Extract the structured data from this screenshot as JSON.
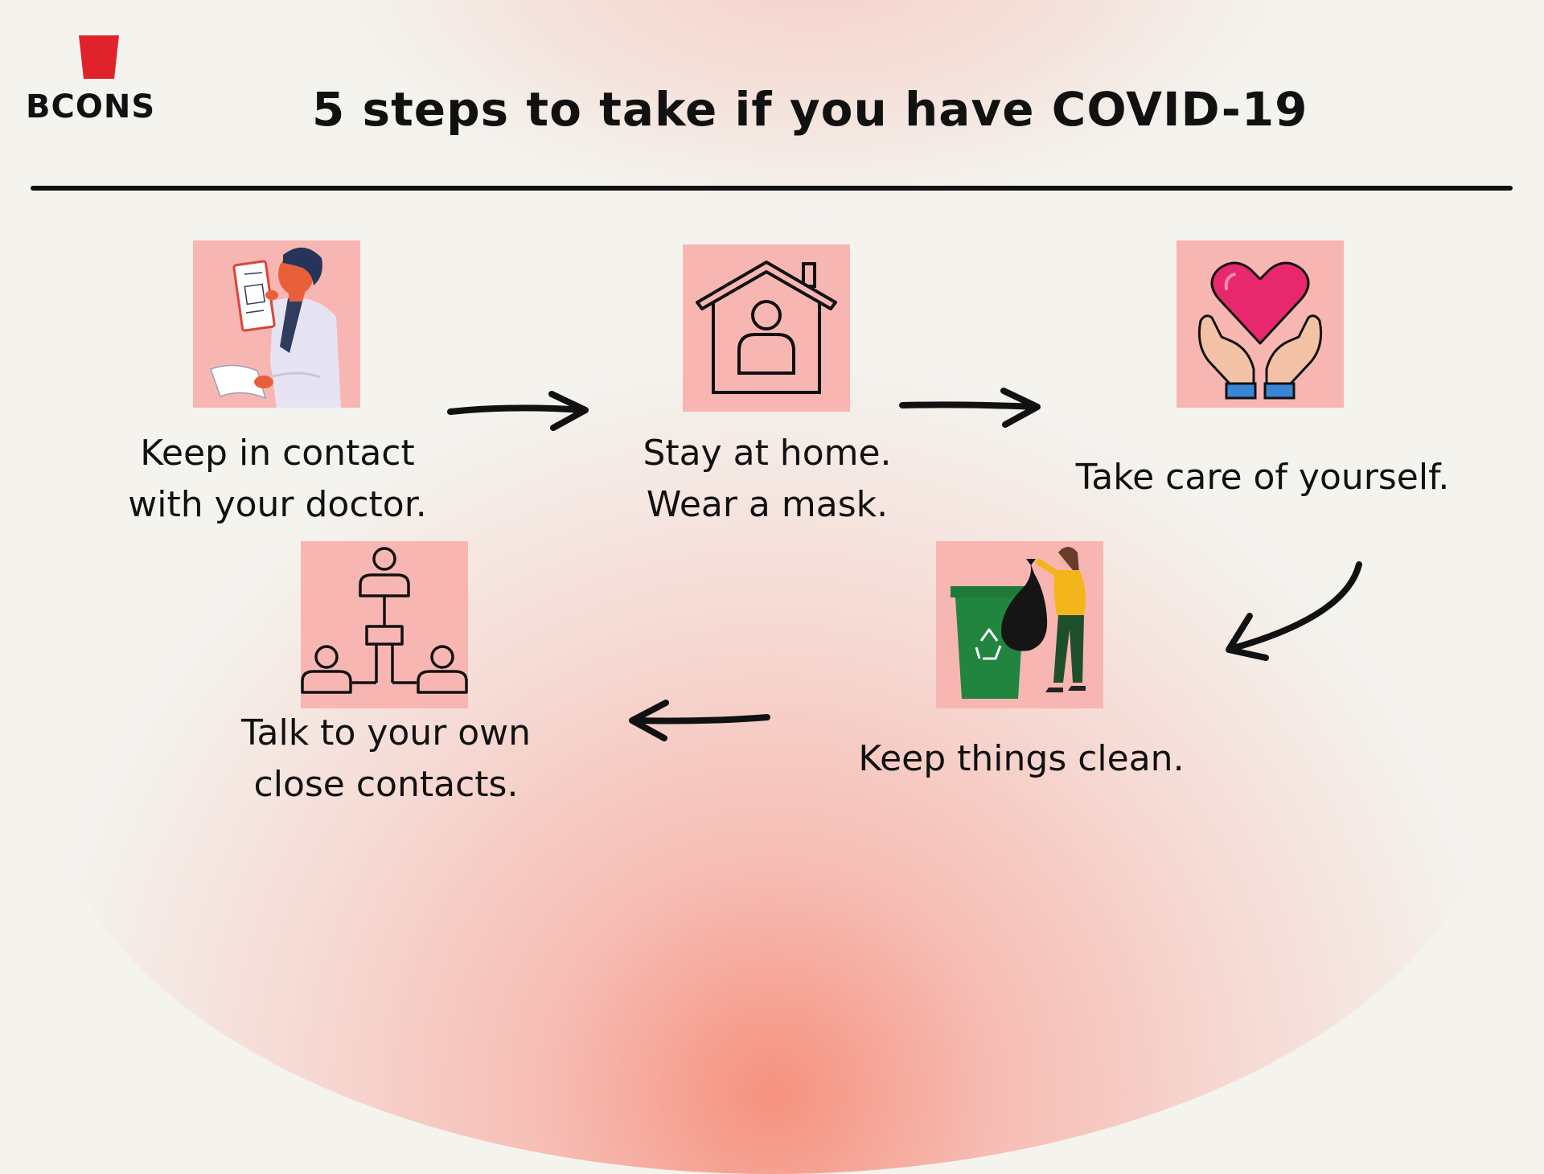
{
  "brand": {
    "logo_text": "BCONS",
    "accent_color": "#e0232a"
  },
  "title": "5 steps to take if you have COVID-19",
  "tile_color": "#f8b6b3",
  "steps": [
    {
      "icon": "doctor-icon",
      "lines": [
        "Keep in contact",
        "with your doctor."
      ]
    },
    {
      "icon": "house-icon",
      "lines": [
        "Stay at home.",
        "Wear a mask."
      ]
    },
    {
      "icon": "heart-hands-icon",
      "lines": [
        "Take care of yourself."
      ]
    },
    {
      "icon": "trash-bin-icon",
      "lines": [
        "Keep things clean."
      ]
    },
    {
      "icon": "contacts-network-icon",
      "lines": [
        "Talk to your own",
        "close contacts."
      ]
    }
  ]
}
